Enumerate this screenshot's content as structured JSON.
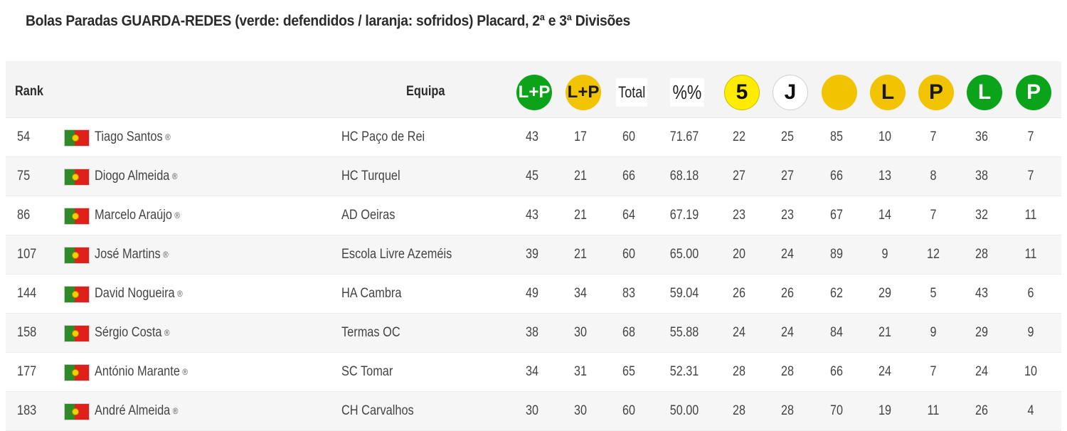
{
  "title": "Bolas Paradas GUARDA-REDES (verde: defendidos / laranja: sofridos) Placard, 2ª e 3ª Divisões",
  "header": {
    "rank": "Rank",
    "equipa": "Equipa",
    "col_lp_green": "L+P",
    "col_lp_gold": "L+P",
    "col_total": "Total",
    "col_pct": "%%",
    "col_5": "5",
    "col_j": "J",
    "col_l_gold": "L",
    "col_p_gold": "P",
    "col_l_green": "L",
    "col_p_green": "P"
  },
  "colors": {
    "green": "#0aa31a",
    "gold": "#f2c300",
    "yellow": "#ffec00"
  },
  "rows": [
    {
      "rank": "54",
      "name": "Tiago Santos",
      "team": "HC Paço de Rei",
      "lp_def": "43",
      "lp_sof": "17",
      "total": "60",
      "pct": "71.67",
      "c5": "22",
      "j": "25",
      "dot": "85",
      "l_sof": "10",
      "p_sof": "7",
      "l_def": "36",
      "p_def": "7"
    },
    {
      "rank": "75",
      "name": "Diogo Almeida",
      "team": "HC Turquel",
      "lp_def": "45",
      "lp_sof": "21",
      "total": "66",
      "pct": "68.18",
      "c5": "27",
      "j": "27",
      "dot": "66",
      "l_sof": "13",
      "p_sof": "8",
      "l_def": "38",
      "p_def": "7"
    },
    {
      "rank": "86",
      "name": "Marcelo Araújo",
      "team": "AD Oeiras",
      "lp_def": "43",
      "lp_sof": "21",
      "total": "64",
      "pct": "67.19",
      "c5": "23",
      "j": "23",
      "dot": "67",
      "l_sof": "14",
      "p_sof": "7",
      "l_def": "32",
      "p_def": "11"
    },
    {
      "rank": "107",
      "name": "José Martins",
      "team": "Escola Livre Azeméis",
      "lp_def": "39",
      "lp_sof": "21",
      "total": "60",
      "pct": "65.00",
      "c5": "20",
      "j": "24",
      "dot": "89",
      "l_sof": "9",
      "p_sof": "12",
      "l_def": "28",
      "p_def": "11"
    },
    {
      "rank": "144",
      "name": "David Nogueira",
      "team": "HA Cambra",
      "lp_def": "49",
      "lp_sof": "34",
      "total": "83",
      "pct": "59.04",
      "c5": "26",
      "j": "26",
      "dot": "62",
      "l_sof": "29",
      "p_sof": "5",
      "l_def": "43",
      "p_def": "6"
    },
    {
      "rank": "158",
      "name": "Sérgio Costa",
      "team": "Termas OC",
      "lp_def": "38",
      "lp_sof": "30",
      "total": "68",
      "pct": "55.88",
      "c5": "24",
      "j": "24",
      "dot": "84",
      "l_sof": "21",
      "p_sof": "9",
      "l_def": "29",
      "p_def": "9"
    },
    {
      "rank": "177",
      "name": "António Marante",
      "team": "SC Tomar",
      "lp_def": "34",
      "lp_sof": "31",
      "total": "65",
      "pct": "52.31",
      "c5": "28",
      "j": "28",
      "dot": "66",
      "l_sof": "24",
      "p_sof": "7",
      "l_def": "24",
      "p_def": "10"
    },
    {
      "rank": "183",
      "name": "André Almeida",
      "team": "CH Carvalhos",
      "lp_def": "30",
      "lp_sof": "30",
      "total": "60",
      "pct": "50.00",
      "c5": "28",
      "j": "28",
      "dot": "70",
      "l_sof": "19",
      "p_sof": "11",
      "l_def": "26",
      "p_def": "4"
    }
  ]
}
